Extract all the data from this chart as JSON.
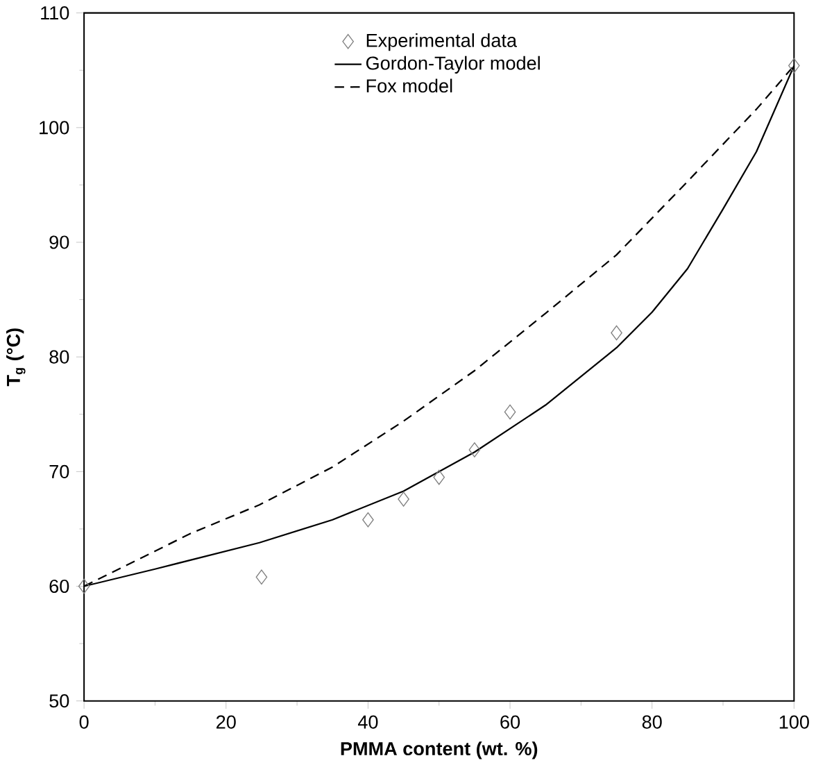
{
  "chart_data": {
    "type": "line",
    "xlabel": "**PMMA content (wt. %)**",
    "ylabel": "**T$_{g}$ (°C)**",
    "xlim": [
      0,
      100
    ],
    "ylim": [
      50,
      110
    ],
    "xticks": [
      0,
      20,
      40,
      60,
      80,
      100
    ],
    "yticks": [
      50,
      60,
      70,
      80,
      90,
      100,
      110
    ],
    "legend": "top",
    "grid": false,
    "series": [
      {
        "name": "Experimental data",
        "type": "scatter",
        "marker": "diamond",
        "color": "#808080",
        "x": [
          0,
          25,
          40,
          45,
          50,
          55,
          60,
          75,
          100
        ],
        "values": [
          60,
          60.8,
          65.8,
          67.6,
          69.5,
          71.9,
          75.2,
          82.1,
          105.4
        ]
      },
      {
        "name": "Gordon-Taylor model",
        "line_style": "solid",
        "color": "#000000",
        "x": [
          0,
          10,
          24.7,
          35,
          45,
          55,
          65,
          75,
          80,
          85,
          90,
          94.7,
          100
        ],
        "values": [
          60,
          61.5,
          63.8,
          65.8,
          68.3,
          71.7,
          75.8,
          80.8,
          83.9,
          87.7,
          92.9,
          97.9,
          105.4
        ]
      },
      {
        "name": "Fox model",
        "line_style": "dashed",
        "color": "#000000",
        "x": [
          0,
          15,
          24.7,
          35,
          45,
          55,
          65,
          75,
          85,
          94.7,
          100
        ],
        "values": [
          60,
          64.6,
          67.1,
          70.4,
          74.4,
          78.8,
          83.8,
          88.9,
          95.3,
          101.6,
          105.4
        ]
      }
    ]
  }
}
